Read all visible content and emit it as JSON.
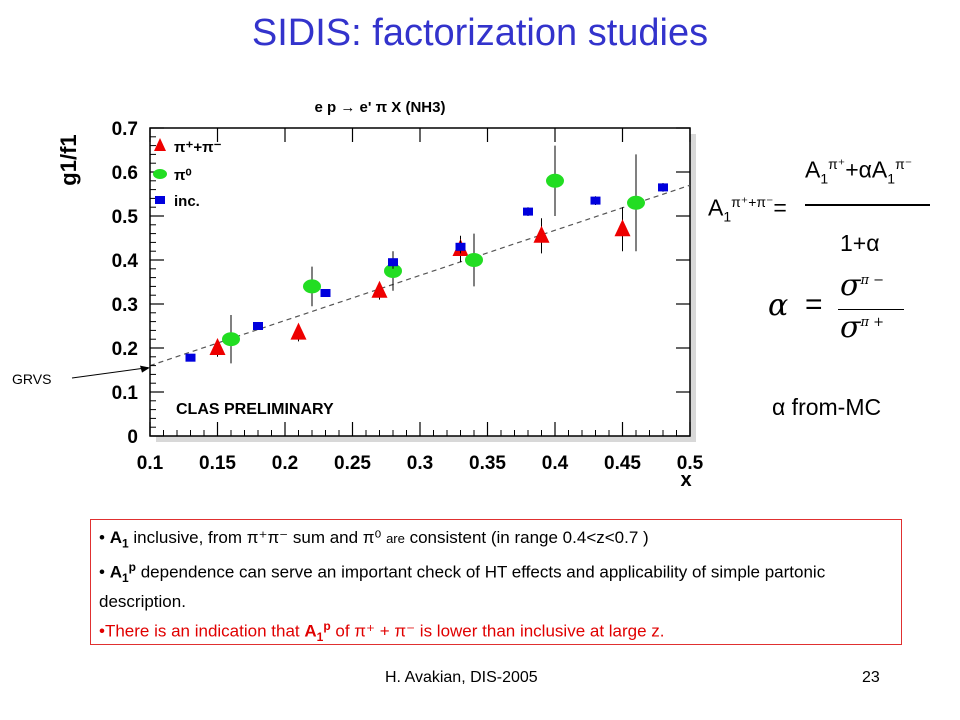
{
  "slide": {
    "title": "SIDIS: factorization studies",
    "footer_left": "H. Avakian, DIS-2005",
    "page_number": "23"
  },
  "formulas": {
    "lhs": "A",
    "lhs_sub": "1",
    "lhs_sup": "π⁺+π⁻",
    "equals": "=",
    "numerator_a1": "A",
    "numerator_sub1": "1",
    "numerator_sup1": "π⁺",
    "numerator_mid": "+αA",
    "numerator_sub2": "1",
    "numerator_sup2": "π⁻",
    "denominator": "1+α",
    "alpha_def_lhs": "α",
    "alpha_def_eq": "=",
    "sigma_num": "σ",
    "sigma_num_sup": "π −",
    "sigma_den": "σ",
    "sigma_den_sup": "π +",
    "alpha_note": "α from-MC"
  },
  "bullets": [
    {
      "prefix": "• ",
      "bold": "A",
      "bold_sub": "1",
      "text": " inclusive, from π⁺π⁻ sum and π⁰ ",
      "small": "are",
      "text2": " consistent (in range 0.4<z<0.7 )"
    },
    {
      "prefix": "• ",
      "bold": "A",
      "bold_sup": "p",
      "bold_sub": "1",
      "text": " dependence can serve an important check of HT effects and applicability of simple partonic description."
    },
    {
      "prefix": "•",
      "text": "There is an indication that ",
      "bold": "A",
      "bold_sub": "1",
      "bold_sup": "p",
      "text2": " of π⁺ + π⁻ is lower than inclusive at large z."
    }
  ],
  "chart_data": {
    "type": "scatter",
    "title": "e p → e' π X (NH3)",
    "xlabel": "x",
    "ylabel": "g1/f1",
    "xlim": [
      0.1,
      0.5
    ],
    "ylim": [
      0,
      0.7
    ],
    "x_ticks": [
      "0.1",
      "0.15",
      "0.2",
      "0.25",
      "0.3",
      "0.35",
      "0.4",
      "0.45",
      "0.5"
    ],
    "y_ticks": [
      "0",
      "0.1",
      "0.2",
      "0.3",
      "0.4",
      "0.5",
      "0.6",
      "0.7"
    ],
    "annotation": "CLAS PRELIMINARY",
    "curve_label": "GRVS",
    "legend_position": "top-left",
    "series": [
      {
        "name": "π⁺+π⁻",
        "marker": "triangle",
        "color": "#ee0000",
        "points": [
          {
            "x": 0.15,
            "y": 0.2,
            "err": 0.02
          },
          {
            "x": 0.21,
            "y": 0.235,
            "err": 0.02
          },
          {
            "x": 0.27,
            "y": 0.33,
            "err": 0.02
          },
          {
            "x": 0.33,
            "y": 0.425,
            "err": 0.03
          },
          {
            "x": 0.39,
            "y": 0.455,
            "err": 0.04
          },
          {
            "x": 0.45,
            "y": 0.47,
            "err": 0.05
          }
        ]
      },
      {
        "name": "π⁰",
        "marker": "circle",
        "color": "#22dd22",
        "points": [
          {
            "x": 0.16,
            "y": 0.22,
            "err": 0.055
          },
          {
            "x": 0.22,
            "y": 0.34,
            "err": 0.045
          },
          {
            "x": 0.28,
            "y": 0.375,
            "err": 0.045
          },
          {
            "x": 0.34,
            "y": 0.4,
            "err": 0.06
          },
          {
            "x": 0.4,
            "y": 0.58,
            "err": 0.08
          },
          {
            "x": 0.46,
            "y": 0.53,
            "err": 0.11
          }
        ]
      },
      {
        "name": "inc.",
        "marker": "square",
        "color": "#0000dd",
        "points": [
          {
            "x": 0.13,
            "y": 0.178,
            "err": 0
          },
          {
            "x": 0.18,
            "y": 0.25,
            "err": 0
          },
          {
            "x": 0.23,
            "y": 0.325,
            "err": 0
          },
          {
            "x": 0.28,
            "y": 0.395,
            "err": 0.015
          },
          {
            "x": 0.33,
            "y": 0.43,
            "err": 0.015
          },
          {
            "x": 0.38,
            "y": 0.51,
            "err": 0.01
          },
          {
            "x": 0.43,
            "y": 0.535,
            "err": 0.01
          },
          {
            "x": 0.48,
            "y": 0.565,
            "err": 0.01
          }
        ]
      }
    ],
    "grvs_curve": {
      "x": [
        0.1,
        0.5
      ],
      "y": [
        0.16,
        0.57
      ]
    }
  }
}
